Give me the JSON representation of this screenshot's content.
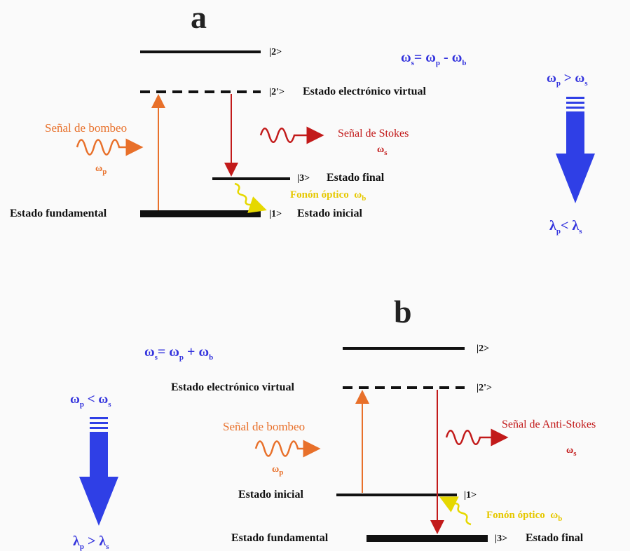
{
  "panel_a": {
    "letter": "a",
    "level_2": "|2>",
    "level_2_prime": "|2'>",
    "virtual_state": "Estado electrónico virtual",
    "pump_signal": "Señal de bombeo",
    "pump_freq": "ω",
    "pump_freq_sub": "p",
    "stokes_signal": "Señal de Stokes",
    "stokes_freq": "ω",
    "stokes_freq_sub": "s",
    "level_3": "|3>",
    "final_state": "Estado final",
    "phonon": "Fonón óptico",
    "phonon_freq": "ω",
    "phonon_freq_sub": "b",
    "ground_state": "Estado fundamental",
    "level_1": "|1>",
    "initial_state": "Estado inicial",
    "equation": "ω",
    "equation_parts": [
      "s",
      "= ω",
      "p",
      " - ω",
      "b"
    ],
    "relation_top": [
      "ω",
      "p",
      " > ω",
      "s"
    ],
    "relation_bottom": [
      "λ",
      "p",
      "<  λ",
      "s"
    ]
  },
  "panel_b": {
    "letter": "b",
    "equation_parts": [
      "ω",
      "s",
      "= ω",
      "p",
      " + ω",
      "b"
    ],
    "level_2": "|2>",
    "level_2_prime": "|2'>",
    "virtual_state": "Estado electrónico virtual",
    "relation_top": [
      "ω",
      "p",
      " <  ω",
      "s"
    ],
    "pump_signal": "Señal de bombeo",
    "pump_freq": "ω",
    "pump_freq_sub": "p",
    "antistokes_signal": "Señal de Anti-Stokes",
    "antistokes_freq": "ω",
    "antistokes_freq_sub": "s",
    "initial_state": "Estado inicial",
    "level_1": "|1>",
    "phonon": "Fonón óptico",
    "phonon_freq": "ω",
    "phonon_freq_sub": "b",
    "ground_state": "Estado fundamental",
    "level_3": "|3>",
    "final_state": "Estado final",
    "relation_bottom": [
      "λ",
      "p",
      " > λ",
      "s"
    ]
  },
  "colors": {
    "pump": "#e8702a",
    "scattered": "#c21a1a",
    "phonon": "#e6d800",
    "blue_arrow": "#2f3fe6"
  }
}
